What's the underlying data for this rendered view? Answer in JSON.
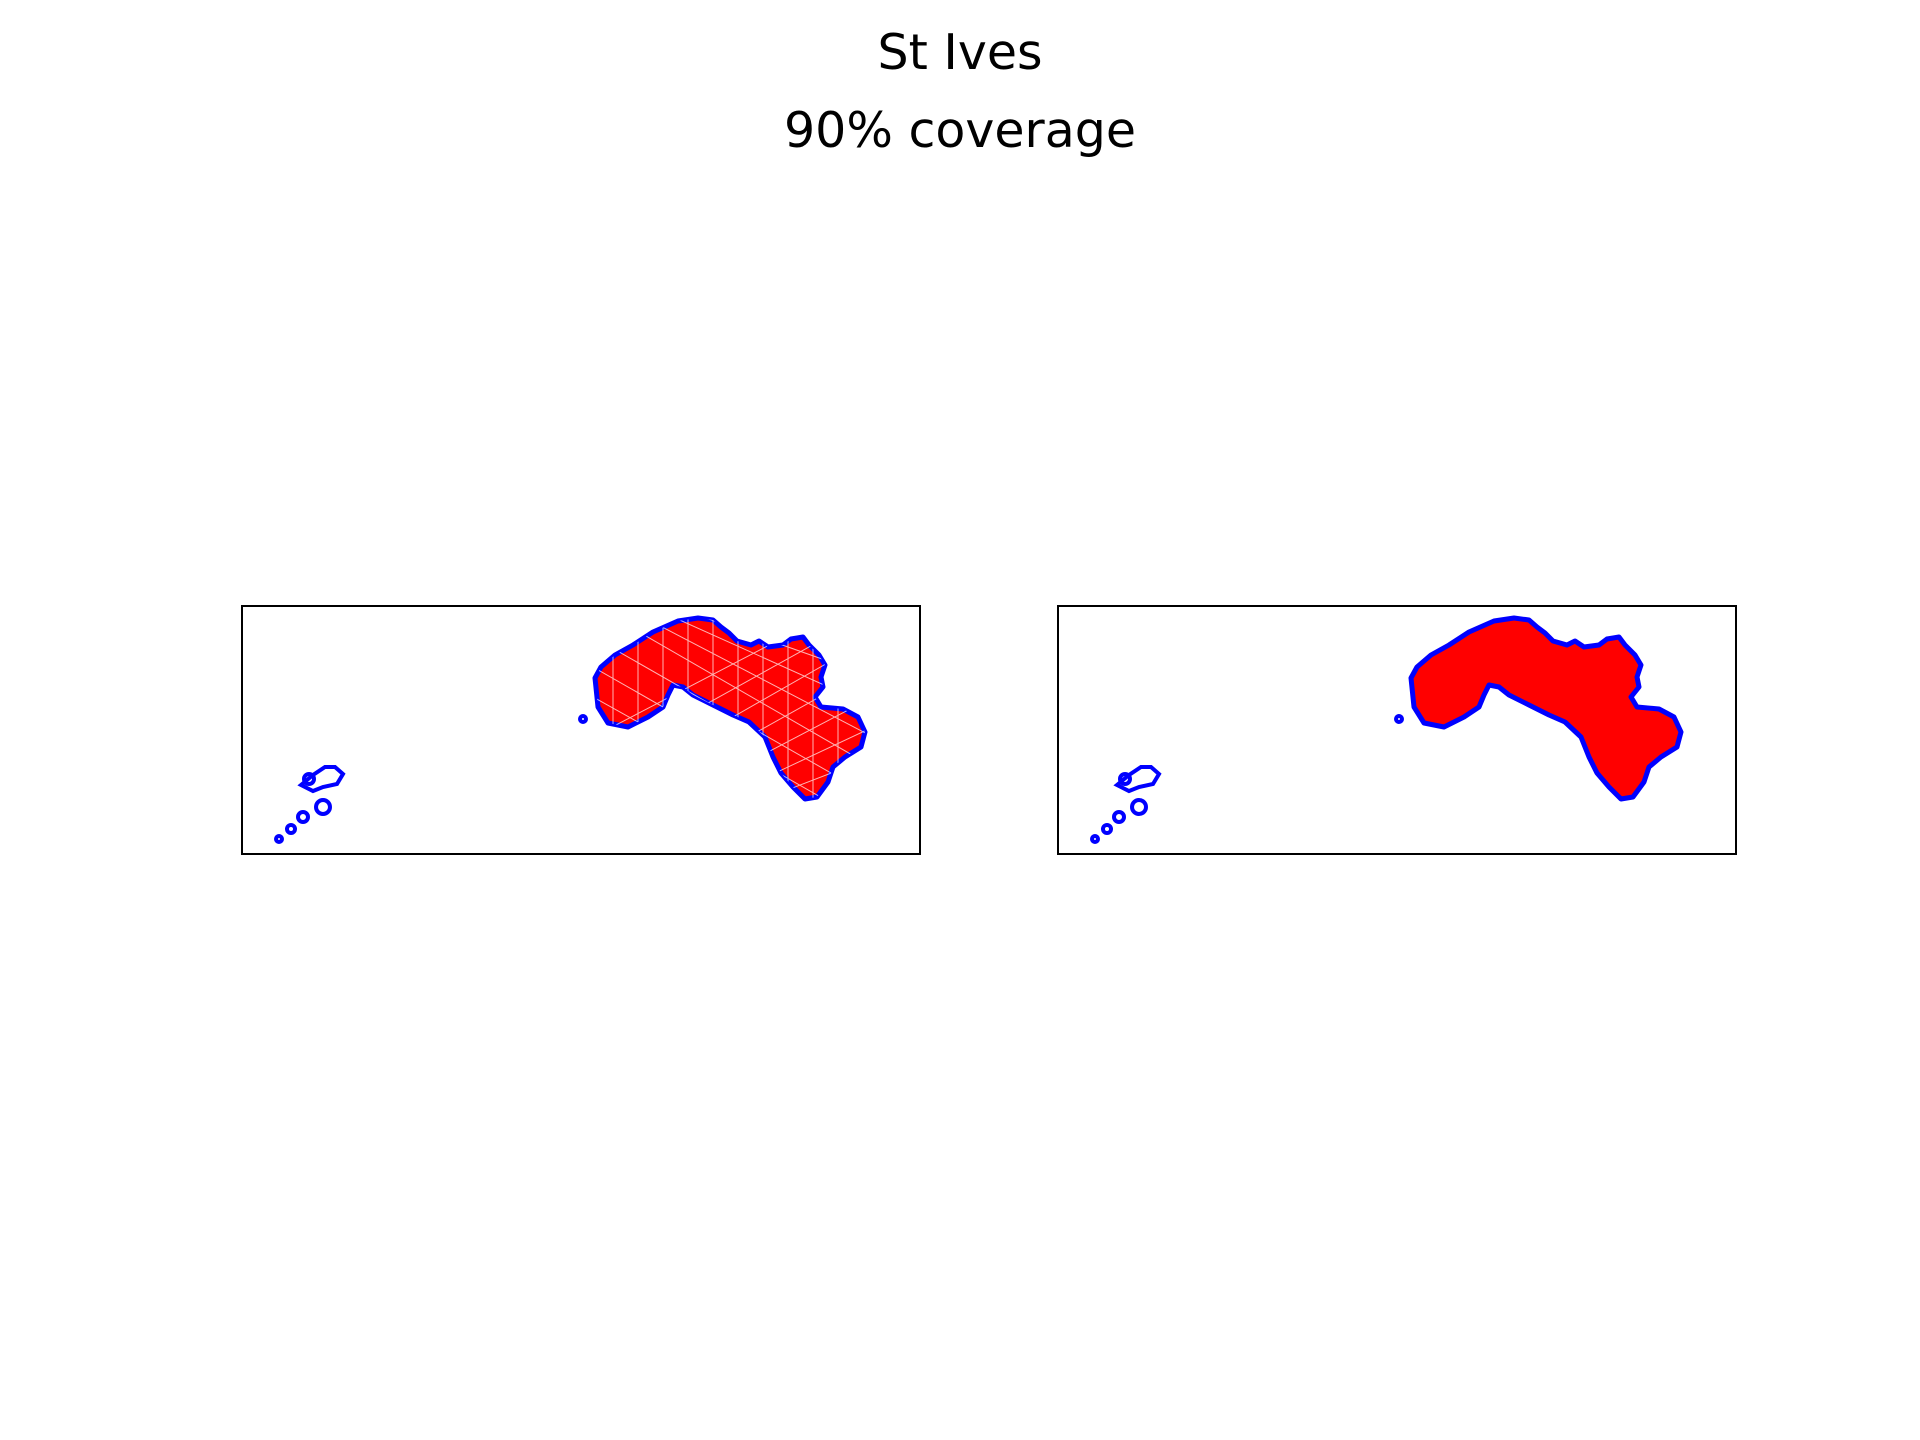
{
  "figure": {
    "title": "St Ives",
    "subtitle": "90% coverage"
  },
  "panels": [
    {
      "view": "triangulated mesh",
      "fill": "#ff0000",
      "mesh_stroke": "#cc0000",
      "outline": "#0000ff"
    },
    {
      "view": "filled coverage",
      "fill": "#ff0000",
      "outline": "#0000ff"
    }
  ],
  "colors": {
    "coverage": "#ff0000",
    "boundary": "#0000ff",
    "frame": "#000000"
  }
}
